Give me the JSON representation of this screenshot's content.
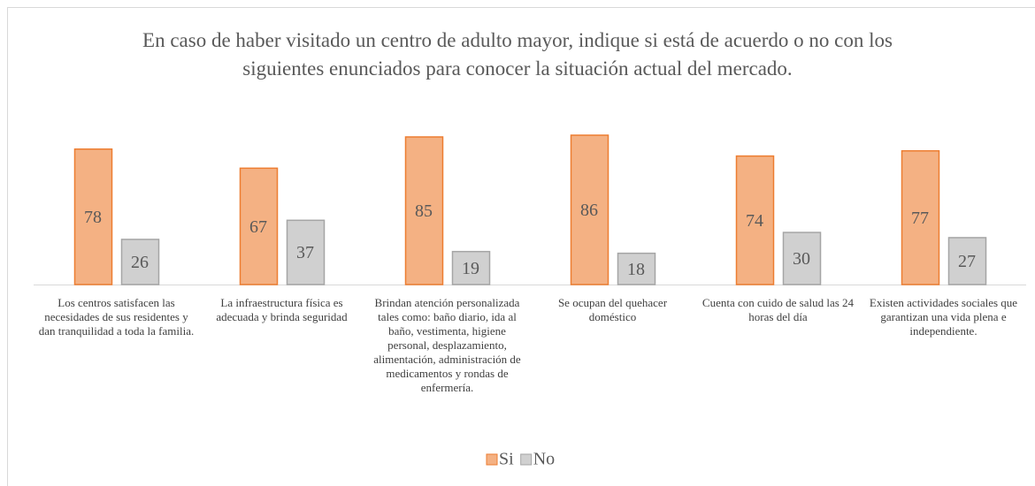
{
  "chart_data": {
    "type": "bar",
    "title": "En caso de haber visitado un centro de adulto mayor, indique si está de acuerdo o no con los siguientes enunciados para conocer la situación actual del mercado.",
    "categories": [
      "Los centros satisfacen las necesidades de sus residentes y dan tranquilidad a toda la familia.",
      "La infraestructura física es adecuada y brinda seguridad",
      "Brindan atención personalizada tales como: baño diario, ida al baño, vestimenta, higiene personal, desplazamiento, alimentación, administración de medicamentos y rondas de enfermería.",
      "Se ocupan del quehacer doméstico",
      "Cuenta con cuido de salud las 24 horas del día",
      "Existen actividades sociales que garantizan una vida plena e independiente."
    ],
    "series": [
      {
        "name": "Si",
        "color": "#f4b183",
        "values": [
          78,
          67,
          85,
          86,
          74,
          77
        ]
      },
      {
        "name": "No",
        "color": "#d0d0d0",
        "values": [
          26,
          37,
          19,
          18,
          30,
          27
        ]
      }
    ],
    "legend": "bottom"
  }
}
